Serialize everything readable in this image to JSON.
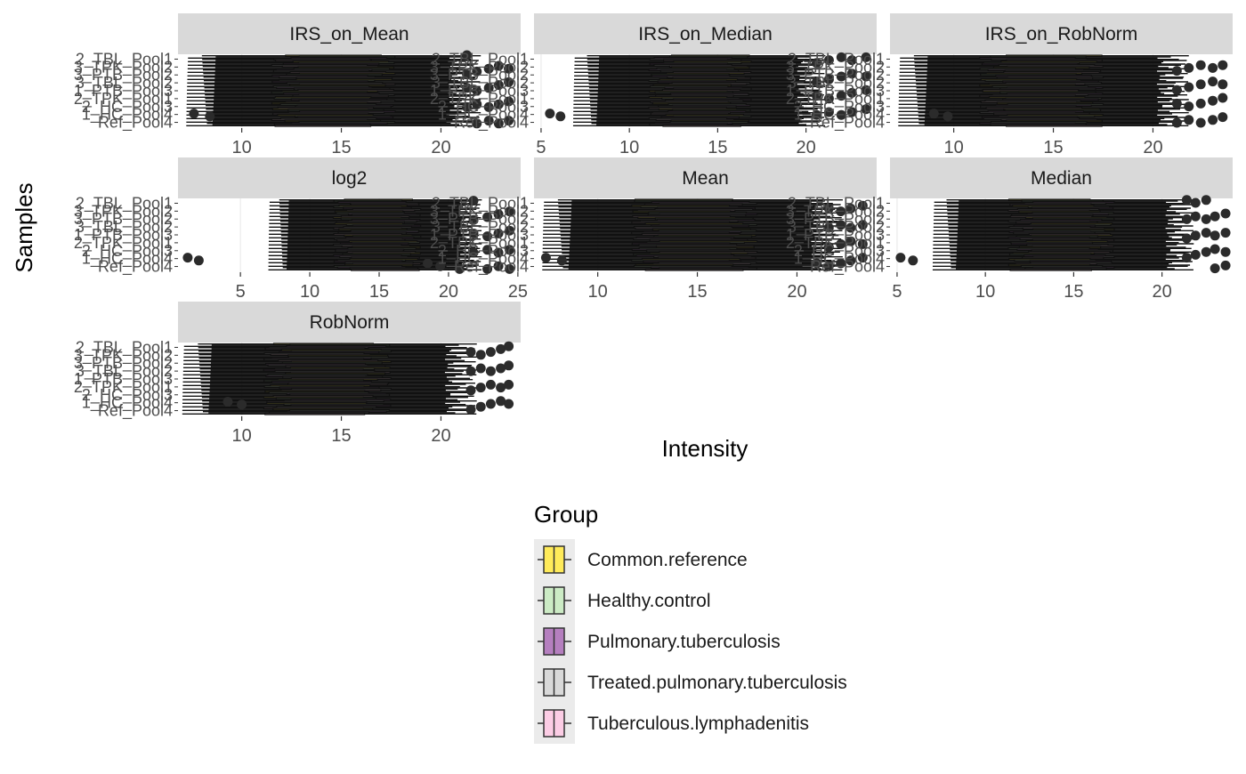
{
  "chart_data": {
    "type": "boxplot",
    "xlabel": "Intensity",
    "ylabel": "Samples",
    "sample_labels": [
      "2_TBL_Pool1",
      "3_TPK_Pool2",
      "3_PTB_Pool2",
      "3_TBL_Pool2",
      "1_PTB_Pool3",
      "2_TPK_Pool1",
      "2_HC_Pool3",
      "1_HC_Pool4",
      "Ref_Pool4"
    ],
    "legend": {
      "title": "Group",
      "entries": [
        {
          "label": "Common.reference",
          "color": "#ffeb5a"
        },
        {
          "label": "Healthy.control",
          "color": "#ccebc5"
        },
        {
          "label": "Pulmonary.tuberculosis",
          "color": "#b57fbf"
        },
        {
          "label": "Treated.pulmonary.tuberculosis",
          "color": "#d9d9d9"
        },
        {
          "label": "Tuberculous.lymphadenitis",
          "color": "#fccde5"
        }
      ]
    },
    "panels": [
      {
        "name": "IRS_on_Mean",
        "xlim": [
          6.8,
          24.0
        ],
        "xticks": [
          10,
          15,
          20
        ],
        "whisker_low": 8,
        "q1": 12.2,
        "median": 14.6,
        "q3": 17.0,
        "whisker_high": 21.2,
        "outliers": [
          7.6,
          8.4,
          21.3,
          21.8,
          22.4,
          22.9,
          23.4
        ]
      },
      {
        "name": "IRS_on_Median",
        "xlim": [
          4.6,
          24.0
        ],
        "xticks": [
          5,
          10,
          15,
          20
        ],
        "whisker_low": 7.6,
        "q1": 11.8,
        "median": 13.9,
        "q3": 16.2,
        "whisker_high": 20.3,
        "outliers": [
          5.5,
          6.1,
          20.6,
          21.3,
          22.0,
          22.6,
          23.4
        ]
      },
      {
        "name": "IRS_on_RobNorm",
        "xlim": [
          6.8,
          24.0
        ],
        "xticks": [
          10,
          15,
          20
        ],
        "whisker_low": 8,
        "q1": 12.0,
        "median": 14.5,
        "q3": 16.8,
        "whisker_high": 21.0,
        "outliers": [
          9.0,
          9.7,
          21.2,
          21.8,
          22.4,
          23.0,
          23.5
        ]
      },
      {
        "name": "log2",
        "xlim": [
          0.5,
          25.2
        ],
        "xticks": [
          5,
          10,
          15,
          20,
          25
        ],
        "whisker_low": 7.8,
        "q1": 12.4,
        "median": 14.8,
        "q3": 17.3,
        "whisker_high": 21.6,
        "outliers": [
          1.2,
          2.0,
          18.5,
          19.4,
          20.8,
          21.8,
          22.8,
          23.6,
          24.4
        ]
      },
      {
        "name": "Mean",
        "xlim": [
          6.8,
          24.0
        ],
        "xticks": [
          10,
          15,
          20
        ],
        "whisker_low": 8,
        "q1": 12.4,
        "median": 14.8,
        "q3": 17.3,
        "whisker_high": 21.5,
        "outliers": [
          7.4,
          8.2,
          21.0,
          21.6,
          22.2,
          22.7,
          23.3
        ]
      },
      {
        "name": "Median",
        "xlim": [
          4.6,
          24.0
        ],
        "xticks": [
          5,
          10,
          15,
          20
        ],
        "whisker_low": 7.8,
        "q1": 12.0,
        "median": 14.2,
        "q3": 16.6,
        "whisker_high": 21.0,
        "outliers": [
          5.2,
          5.9,
          21.4,
          21.9,
          22.5,
          23.0,
          23.6
        ]
      },
      {
        "name": "RobNorm",
        "xlim": [
          6.8,
          24.0
        ],
        "xticks": [
          10,
          15,
          20
        ],
        "whisker_low": 7.8,
        "q1": 11.8,
        "median": 14.3,
        "q3": 16.8,
        "whisker_high": 21.0,
        "outliers": [
          9.3,
          10.0,
          21.5,
          22.0,
          22.5,
          23.0,
          23.4
        ]
      }
    ]
  }
}
